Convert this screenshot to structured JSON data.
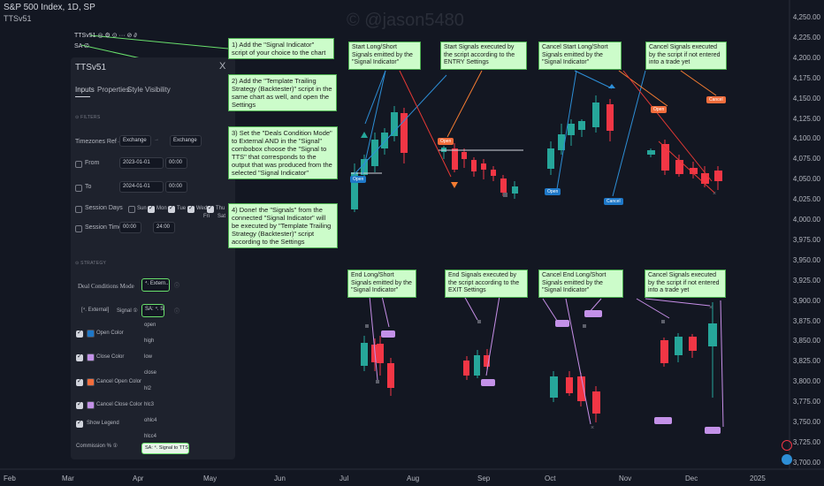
{
  "header": {
    "symbol": "S&P 500 Index, 1D, SP",
    "indicator": "TTSv51",
    "legend_row1": "TTSv51 ◎ ⚙ ⊙ ··· ⊘ ∂",
    "legend_row2": "SA ∅",
    "watermark": "© @jason5480"
  },
  "axes": {
    "y_ticks": [
      "4,250.00",
      "4,225.00",
      "4,200.00",
      "4,175.00",
      "4,150.00",
      "4,125.00",
      "4,100.00",
      "4,075.00",
      "4,050.00",
      "4,025.00",
      "4,000.00",
      "3,975.00",
      "3,950.00",
      "3,925.00",
      "3,900.00",
      "3,875.00",
      "3,850.00",
      "3,825.00",
      "3,800.00",
      "3,775.00",
      "3,750.00",
      "3,725.00",
      "3,700.00"
    ],
    "x_ticks": [
      "Feb",
      "Mar",
      "Apr",
      "May",
      "Jun",
      "Jul",
      "Aug",
      "Sep",
      "Oct",
      "Nov",
      "Dec",
      "2025"
    ]
  },
  "panel": {
    "title": "TTSv51",
    "close": "X",
    "tabs": [
      "Inputs",
      "Properties",
      "Style",
      "Visibility"
    ],
    "section_filters": "⊙ FILTERS",
    "timezones_label": "Timezones Ref→Chart",
    "tz_from": "Exchange",
    "tz_to": "Exchange",
    "from_label": "From",
    "from_date": "2023-01-01",
    "from_time": "00:00",
    "to_label": "To",
    "to_date": "2024-01-01",
    "to_time": "00:00",
    "session_days_label": "Session Days",
    "days": [
      "Sun",
      "Mon",
      "Tue",
      "Wed",
      "Thu",
      "Fri",
      "Sat"
    ],
    "session_time_label": "Session Time",
    "session_start": "00:00",
    "session_end": "24:00",
    "section_strategy": "⊙ STRATEGY",
    "deal_conditions_label": "Deal Conditions Mode",
    "deal_conditions_value": "⁴. Extern...",
    "external_label": "[⁴. External]",
    "signal_label": "Signal ①",
    "signal_value": "SA: ⁴. Si...",
    "options": [
      "open",
      "high",
      "low",
      "close",
      "hl2",
      "hlc3",
      "ohlc4",
      "hlcc4"
    ],
    "selected_option": "SA: ⁴. Signal to TTS",
    "open_color": "Open Color",
    "close_color": "Close Color",
    "cancel_open_color": "Cancel Open Color",
    "cancel_close_color": "Cancel Close Color",
    "show_legend": "Show Legend",
    "commission": "Commission % ①"
  },
  "notes": {
    "step1": "1)  Add the \"Signal Indicator\" script of your choice to the chart",
    "step2": "2) Add the \"Template Trailing Strategy (Backtester)\" script in the same chart as well, and open the Settings",
    "step3": "3) Set the \"Deals Condition Mode\" to External AND in the \"Signal\" combobox choose the \"Signal to TTS\" that corresponds to the output that was produced from the selected \"Signal Indicator\"",
    "step4": "4) Done! the \"Signals\" from the connected \"Signal Indicator\" will be executed by \"Template Trailing Strategy (Backtester)\" script according to the Settings",
    "start_emit": "Start Long/Short Signals emitted by the \"Signal Indicator\"",
    "start_exec": "Start Signals executed by the script according to the ENTRY Settings",
    "cancel_start_emit": "Cancel Start Long/Short Signals emitted by the \"Signal Indicator\"",
    "cancel_exec_top": "Cancel Signals executed by the script if not entered into a trade yet",
    "end_emit": "End Long/Short Signals emitted by the \"Signal Indicator\"",
    "end_exec": "End Signals executed by the script according to the EXIT Settings",
    "cancel_end_emit": "Cancel End Long/Short Signals emitted by the \"Signal Indicator\"",
    "cancel_exec_bottom": "Cancel Signals executed by the script if not entered into a trade yet"
  },
  "labels": {
    "open": "Open",
    "cancel": "Cancel"
  },
  "colors": {
    "bull": "#26a69a",
    "bear": "#f23645",
    "note_bg": "#ccfcca",
    "arrow_green": "#69e06c",
    "arrow_blue": "#2d8ed6",
    "arrow_orange": "#f57c32",
    "arrow_red": "#e53935",
    "arrow_purple": "#c78fe8",
    "open_label": "#1e78c8",
    "cancel_label": "#f26d3c",
    "end_label": "#c391e8"
  }
}
